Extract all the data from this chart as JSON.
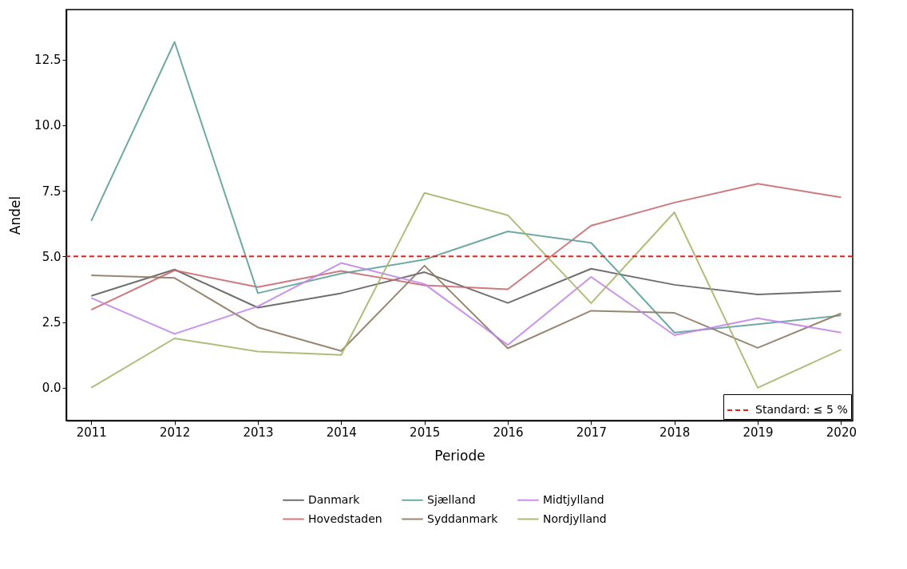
{
  "chart_data": {
    "type": "line",
    "xlabel": "Periode",
    "ylabel": "Andel",
    "x": [
      2011,
      2012,
      2013,
      2014,
      2015,
      2016,
      2017,
      2018,
      2019,
      2020
    ],
    "xlim": [
      2010.7,
      2020.14
    ],
    "xticks": [
      2011,
      2012,
      2013,
      2014,
      2015,
      2016,
      2017,
      2018,
      2019,
      2020
    ],
    "ylim": [
      -1.25,
      14.4
    ],
    "yticks": [
      {
        "value": 0,
        "label": "0.0"
      },
      2.5,
      {
        "value": 5,
        "label": "5.0"
      },
      7.5,
      {
        "value": 10,
        "label": "10.0"
      },
      12.5
    ],
    "grid": false,
    "legend": "bottom",
    "series": [
      {
        "name": "Danmark",
        "color": "#5f5f5f",
        "values": [
          3.5,
          4.5,
          3.05,
          3.6,
          4.4,
          3.23,
          4.53,
          3.92,
          3.55,
          3.68
        ]
      },
      {
        "name": "Hovedstaden",
        "color": "#c96a72",
        "values": [
          2.97,
          4.47,
          3.83,
          4.45,
          3.9,
          3.75,
          6.17,
          7.05,
          7.77,
          7.25
        ]
      },
      {
        "name": "Sjælland",
        "color": "#5fa09a",
        "values": [
          6.35,
          13.17,
          3.6,
          4.35,
          4.88,
          5.95,
          5.52,
          2.1,
          2.42,
          2.75
        ]
      },
      {
        "name": "Syddanmark",
        "color": "#8c7a63",
        "values": [
          4.28,
          4.18,
          2.3,
          1.4,
          4.65,
          1.5,
          2.93,
          2.85,
          1.52,
          2.83
        ]
      },
      {
        "name": "Midtjylland",
        "color": "#c285e8",
        "values": [
          3.42,
          2.05,
          3.1,
          4.75,
          3.95,
          1.63,
          4.22,
          2.0,
          2.65,
          2.1
        ]
      },
      {
        "name": "Nordjylland",
        "color": "#a7b56b",
        "values": [
          0.0,
          1.88,
          1.38,
          1.25,
          7.42,
          6.57,
          3.22,
          6.68,
          0.0,
          1.45
        ]
      }
    ],
    "ref_lines": [
      {
        "axis": "y",
        "value": 5,
        "label": "Standard: ≤ 5 %",
        "color": "#e8201c",
        "line_style": "dashed"
      }
    ]
  }
}
